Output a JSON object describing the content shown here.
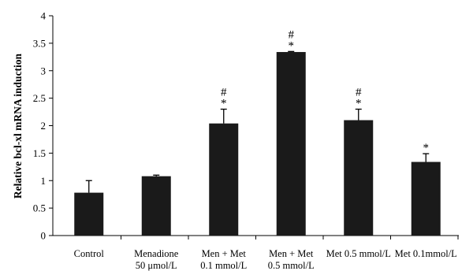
{
  "chart_data": {
    "type": "bar",
    "ylabel": "Relative bcl-xl mRNA induction",
    "xlabel": "",
    "ylim": [
      0,
      4
    ],
    "yticks": [
      "0",
      "0.5",
      "1",
      "1.5",
      "2",
      "2.5",
      "3",
      "3.5",
      "4"
    ],
    "grid": false,
    "bar_color": "#1a1a1a",
    "categories": [
      {
        "lines": [
          "Control"
        ],
        "value": 0.78,
        "error": 0.22,
        "annotations": []
      },
      {
        "lines": [
          "Menadione",
          "50 μmol/L"
        ],
        "value": 1.08,
        "error": 0.02,
        "annotations": []
      },
      {
        "lines": [
          "Men + Met",
          "0.1 mmol/L"
        ],
        "value": 2.04,
        "error": 0.26,
        "annotations": [
          "#",
          "*"
        ]
      },
      {
        "lines": [
          "Men + Met",
          "0.5 mmol/L"
        ],
        "value": 3.34,
        "error": 0.01,
        "annotations": [
          "#",
          "*"
        ]
      },
      {
        "lines": [
          "Met 0.5 mmol/L"
        ],
        "value": 2.1,
        "error": 0.2,
        "annotations": [
          "#",
          "*"
        ]
      },
      {
        "lines": [
          "Met 0.1mmol/L"
        ],
        "value": 1.34,
        "error": 0.15,
        "annotations": [
          "*"
        ]
      }
    ]
  }
}
